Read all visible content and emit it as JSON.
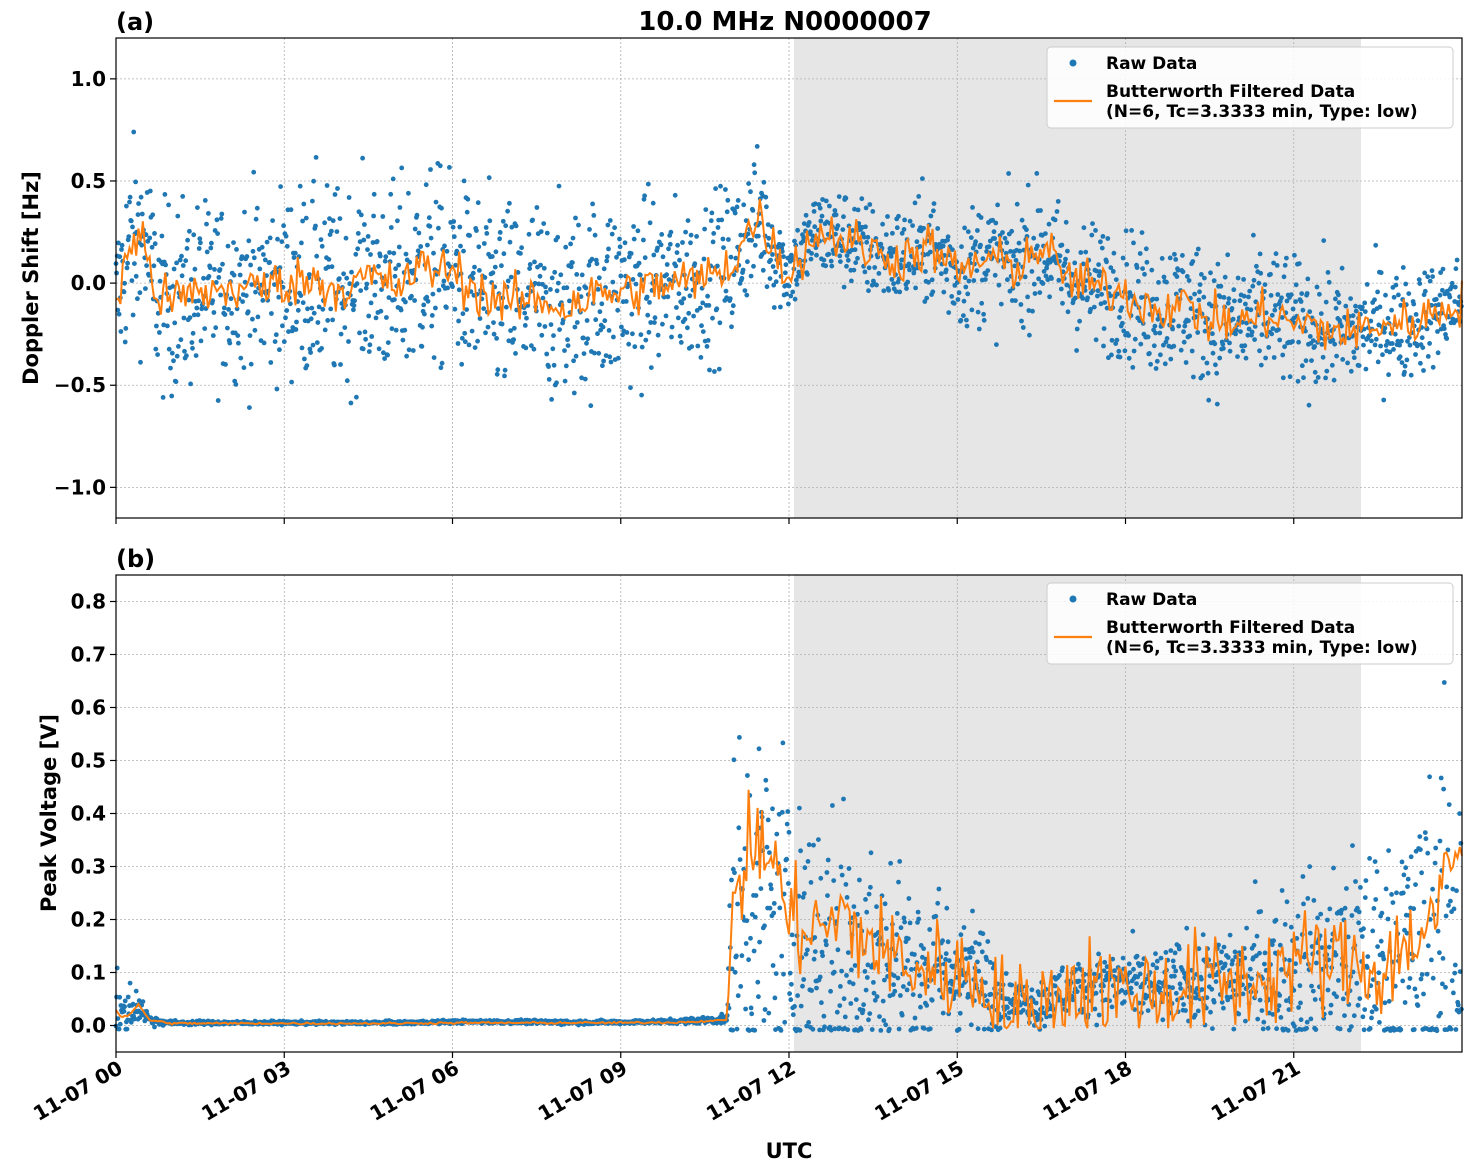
{
  "figure": {
    "title": "10.0 MHz N0000007",
    "xlabel": "UTC",
    "colors": {
      "raw": "#1f77b4",
      "filtered": "#ff7f0e",
      "shade": "#e6e6e6",
      "grid": "#b0b0b0"
    }
  },
  "chart_data": [
    {
      "type": "scatter",
      "panel_label": "(a)",
      "title": "10.0 MHz N0000007",
      "ylabel": "Doppler Shift [Hz]",
      "xlabel": "",
      "xlim_hours": [
        0,
        24
      ],
      "ylim": [
        -1.15,
        1.2
      ],
      "yticks": [
        1.0,
        0.5,
        0.0,
        -0.5,
        -1.0
      ],
      "ytick_labels": [
        "1.0",
        "0.5",
        "0.0",
        "−0.5",
        "−1.0"
      ],
      "grid": true,
      "legend_position": "top-right",
      "shaded_span_hours": [
        12.05,
        22.2
      ],
      "series": [
        {
          "name": "Raw Data",
          "style": "points",
          "color": "#1f77b4",
          "x_hours": [
            0,
            0.25,
            0.5,
            0.75,
            1,
            1.5,
            2,
            2.5,
            3,
            3.5,
            4,
            4.5,
            5,
            5.5,
            6,
            6.5,
            7,
            7.5,
            8,
            8.5,
            9,
            9.5,
            10,
            10.5,
            11,
            11.25,
            11.5,
            11.75,
            12,
            12.5,
            13,
            13.5,
            14,
            14.5,
            15,
            15.5,
            16,
            16.5,
            17,
            17.5,
            18,
            18.5,
            19,
            19.5,
            20,
            20.5,
            21,
            21.5,
            22,
            22.5,
            23,
            23.5,
            24
          ],
          "center": [
            -0.1,
            0.18,
            0.22,
            -0.08,
            -0.08,
            -0.05,
            -0.03,
            -0.02,
            0.0,
            0.02,
            -0.03,
            0.03,
            -0.02,
            0.08,
            0.06,
            -0.05,
            -0.1,
            -0.08,
            -0.12,
            -0.06,
            -0.05,
            -0.02,
            0.0,
            0.02,
            0.1,
            0.25,
            0.32,
            0.15,
            0.05,
            0.25,
            0.22,
            0.15,
            0.12,
            0.18,
            0.05,
            0.12,
            0.08,
            0.18,
            0.02,
            -0.02,
            -0.05,
            -0.12,
            -0.1,
            -0.18,
            -0.2,
            -0.15,
            -0.2,
            -0.22,
            -0.25,
            -0.2,
            -0.2,
            -0.15,
            -0.08
          ],
          "spread": [
            0.35,
            0.45,
            0.4,
            0.4,
            0.42,
            0.4,
            0.38,
            0.42,
            0.4,
            0.45,
            0.42,
            0.42,
            0.45,
            0.45,
            0.42,
            0.42,
            0.45,
            0.45,
            0.42,
            0.42,
            0.42,
            0.4,
            0.35,
            0.35,
            0.35,
            0.3,
            0.3,
            0.25,
            0.18,
            0.2,
            0.22,
            0.22,
            0.22,
            0.25,
            0.25,
            0.28,
            0.28,
            0.28,
            0.28,
            0.28,
            0.28,
            0.3,
            0.3,
            0.3,
            0.3,
            0.3,
            0.28,
            0.28,
            0.25,
            0.25,
            0.25,
            0.22,
            0.2
          ]
        },
        {
          "name": "Butterworth Filtered Data\n(N=6, Tc=3.3333 min, Type: low)",
          "style": "line",
          "color": "#ff7f0e",
          "x_hours": [
            0,
            0.25,
            0.5,
            0.75,
            1,
            1.5,
            2,
            2.5,
            3,
            3.5,
            4,
            4.5,
            5,
            5.5,
            6,
            6.5,
            7,
            7.5,
            8,
            8.5,
            9,
            9.5,
            10,
            10.5,
            11,
            11.25,
            11.5,
            11.75,
            12,
            12.5,
            13,
            13.5,
            14,
            14.5,
            15,
            15.5,
            16,
            16.5,
            17,
            17.5,
            18,
            18.5,
            19,
            19.5,
            20,
            20.5,
            21,
            21.5,
            22,
            22.5,
            23,
            23.5,
            24
          ],
          "y": [
            -0.1,
            0.18,
            0.22,
            -0.08,
            -0.08,
            -0.05,
            -0.03,
            -0.02,
            0.0,
            0.02,
            -0.03,
            0.03,
            -0.02,
            0.08,
            0.06,
            -0.05,
            -0.1,
            -0.08,
            -0.12,
            -0.06,
            -0.05,
            -0.02,
            0.0,
            0.02,
            0.1,
            0.25,
            0.32,
            0.15,
            0.05,
            0.25,
            0.22,
            0.15,
            0.12,
            0.18,
            0.05,
            0.12,
            0.08,
            0.18,
            0.02,
            -0.02,
            -0.05,
            -0.12,
            -0.1,
            -0.18,
            -0.2,
            -0.15,
            -0.2,
            -0.22,
            -0.25,
            -0.2,
            -0.2,
            -0.15,
            -0.08
          ]
        }
      ]
    },
    {
      "type": "scatter",
      "panel_label": "(b)",
      "title": "",
      "ylabel": "Peak Voltage [V]",
      "xlabel": "UTC",
      "xlim_hours": [
        0,
        24
      ],
      "ylim": [
        -0.05,
        0.85
      ],
      "yticks": [
        0.8,
        0.7,
        0.6,
        0.5,
        0.4,
        0.3,
        0.2,
        0.1,
        0.0
      ],
      "ytick_labels": [
        "0.8",
        "0.7",
        "0.6",
        "0.5",
        "0.4",
        "0.3",
        "0.2",
        "0.1",
        "0.0"
      ],
      "xticks_hours": [
        0,
        3,
        6,
        9,
        12,
        15,
        18,
        21
      ],
      "xtick_labels": [
        "11-07 00",
        "11-07 03",
        "11-07 06",
        "11-07 09",
        "11-07 12",
        "11-07 15",
        "11-07 18",
        "11-07 21"
      ],
      "grid": true,
      "legend_position": "top-right",
      "shaded_span_hours": [
        12.05,
        22.2
      ],
      "series": [
        {
          "name": "Raw Data",
          "style": "points",
          "color": "#1f77b4",
          "x_hours": [
            0,
            0.1,
            0.25,
            0.4,
            0.6,
            1,
            2,
            3,
            4,
            5,
            6,
            7,
            8,
            9,
            10,
            10.9,
            11.0,
            11.2,
            11.5,
            11.75,
            12,
            12.5,
            13,
            13.5,
            14,
            14.5,
            15,
            15.5,
            15.9,
            16.5,
            17,
            17.5,
            18,
            18.5,
            19,
            19.5,
            20,
            20.5,
            21,
            21.5,
            22,
            22.5,
            23,
            23.5,
            24
          ],
          "center": [
            0.04,
            0.02,
            0.03,
            0.04,
            0.01,
            0.005,
            0.005,
            0.005,
            0.005,
            0.005,
            0.007,
            0.007,
            0.006,
            0.006,
            0.008,
            0.012,
            0.2,
            0.2,
            0.22,
            0.18,
            0.15,
            0.15,
            0.14,
            0.12,
            0.12,
            0.1,
            0.1,
            0.08,
            0.05,
            0.04,
            0.07,
            0.08,
            0.08,
            0.07,
            0.08,
            0.08,
            0.09,
            0.1,
            0.1,
            0.12,
            0.12,
            0.12,
            0.13,
            0.15,
            0.2
          ],
          "spread": [
            0.08,
            0.02,
            0.05,
            0.03,
            0.01,
            0.004,
            0.003,
            0.003,
            0.003,
            0.003,
            0.003,
            0.003,
            0.004,
            0.003,
            0.004,
            0.008,
            0.3,
            0.3,
            0.3,
            0.35,
            0.3,
            0.25,
            0.25,
            0.2,
            0.18,
            0.15,
            0.12,
            0.1,
            0.03,
            0.04,
            0.05,
            0.05,
            0.06,
            0.06,
            0.07,
            0.08,
            0.1,
            0.12,
            0.15,
            0.15,
            0.18,
            0.2,
            0.25,
            0.3,
            0.35
          ]
        },
        {
          "name": "Butterworth Filtered Data\n(N=6, Tc=3.3333 min, Type: low)",
          "style": "line",
          "color": "#ff7f0e",
          "x_hours": [
            0,
            0.1,
            0.25,
            0.4,
            0.6,
            1,
            2,
            3,
            4,
            5,
            6,
            7,
            8,
            9,
            10,
            10.9,
            11.0,
            11.2,
            11.5,
            11.75,
            12,
            12.5,
            13,
            13.5,
            14,
            14.5,
            15,
            15.5,
            15.9,
            16.5,
            17,
            17.5,
            18,
            18.5,
            19,
            19.5,
            20,
            20.5,
            21,
            21.5,
            22,
            22.5,
            23,
            23.5,
            24
          ],
          "y": [
            0.03,
            0.015,
            0.02,
            0.04,
            0.01,
            0.004,
            0.004,
            0.004,
            0.004,
            0.004,
            0.005,
            0.005,
            0.005,
            0.005,
            0.006,
            0.01,
            0.25,
            0.3,
            0.35,
            0.3,
            0.2,
            0.18,
            0.2,
            0.15,
            0.12,
            0.1,
            0.1,
            0.08,
            0.02,
            0.03,
            0.07,
            0.08,
            0.06,
            0.06,
            0.07,
            0.08,
            0.08,
            0.09,
            0.12,
            0.12,
            0.12,
            0.1,
            0.15,
            0.2,
            0.35
          ]
        }
      ]
    }
  ]
}
